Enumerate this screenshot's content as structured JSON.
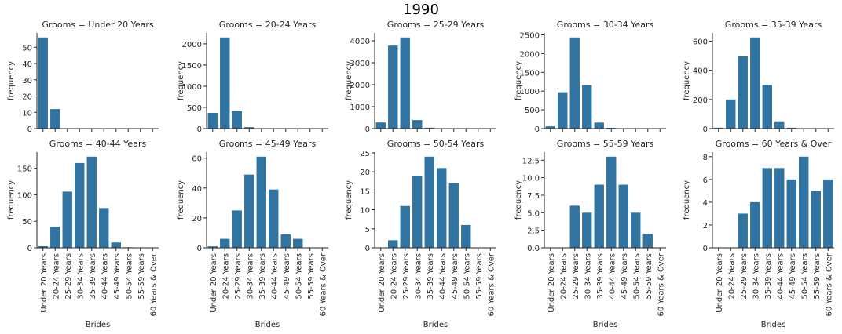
{
  "figure": {
    "title": "1990",
    "bar_color": "#3274a1",
    "axis_color": "#262626"
  },
  "chart_data": [
    {
      "type": "bar",
      "title": "Grooms = Under 20 Years",
      "xlabel": "",
      "ylabel": "frequency",
      "categories": [
        "Under 20 Years",
        "20-24 Years",
        "25-29 Years",
        "30-34 Years",
        "35-39 Years",
        "40-44 Years",
        "45-49 Years",
        "50-54 Years",
        "55-59 Years",
        "60 Years & Over"
      ],
      "values": [
        56,
        12,
        0,
        0,
        0,
        0,
        0,
        0,
        0,
        0
      ],
      "ylim": [
        0,
        58.8
      ],
      "yticks": [
        0,
        10,
        20,
        30,
        40,
        50
      ],
      "yticklabels": [
        "0",
        "10",
        "20",
        "30",
        "40",
        "50"
      ],
      "show_xticklabels": false
    },
    {
      "type": "bar",
      "title": "Grooms = 20-24 Years",
      "xlabel": "",
      "ylabel": "frequency",
      "categories": [
        "Under 20 Years",
        "20-24 Years",
        "25-29 Years",
        "30-34 Years",
        "35-39 Years",
        "40-44 Years",
        "45-49 Years",
        "50-54 Years",
        "55-59 Years",
        "60 Years & Over"
      ],
      "values": [
        370,
        2150,
        410,
        35,
        5,
        1,
        0,
        0,
        0,
        0
      ],
      "ylim": [
        0,
        2257.5
      ],
      "yticks": [
        0,
        500,
        1000,
        1500,
        2000
      ],
      "yticklabels": [
        "0",
        "500",
        "1000",
        "1500",
        "2000"
      ],
      "show_xticklabels": false
    },
    {
      "type": "bar",
      "title": "Grooms = 25-29 Years",
      "xlabel": "",
      "ylabel": "frequency",
      "categories": [
        "Under 20 Years",
        "20-24 Years",
        "25-29 Years",
        "30-34 Years",
        "35-39 Years",
        "40-44 Years",
        "45-49 Years",
        "50-54 Years",
        "55-59 Years",
        "60 Years & Over"
      ],
      "values": [
        280,
        3780,
        4150,
        390,
        40,
        5,
        1,
        0,
        0,
        0
      ],
      "ylim": [
        0,
        4357.5
      ],
      "yticks": [
        0,
        1000,
        2000,
        3000,
        4000
      ],
      "yticklabels": [
        "0",
        "1000",
        "2000",
        "3000",
        "4000"
      ],
      "show_xticklabels": false
    },
    {
      "type": "bar",
      "title": "Grooms = 30-34 Years",
      "xlabel": "",
      "ylabel": "frequency",
      "categories": [
        "Under 20 Years",
        "20-24 Years",
        "25-29 Years",
        "30-34 Years",
        "35-39 Years",
        "40-44 Years",
        "45-49 Years",
        "50-54 Years",
        "55-59 Years",
        "60 Years & Over"
      ],
      "values": [
        60,
        970,
        2430,
        1160,
        160,
        20,
        3,
        0,
        0,
        0
      ],
      "ylim": [
        0,
        2551.5
      ],
      "yticks": [
        0,
        500,
        1000,
        1500,
        2000,
        2500
      ],
      "yticklabels": [
        "0",
        "500",
        "1000",
        "1500",
        "2000",
        "2500"
      ],
      "show_xticklabels": false
    },
    {
      "type": "bar",
      "title": "Grooms = 35-39 Years",
      "xlabel": "",
      "ylabel": "frequency",
      "categories": [
        "Under 20 Years",
        "20-24 Years",
        "25-29 Years",
        "30-34 Years",
        "35-39 Years",
        "40-44 Years",
        "45-49 Years",
        "50-54 Years",
        "55-59 Years",
        "60 Years & Over"
      ],
      "values": [
        6,
        200,
        495,
        625,
        300,
        50,
        6,
        1,
        0,
        0
      ],
      "ylim": [
        0,
        656.25
      ],
      "yticks": [
        0,
        200,
        400,
        600
      ],
      "yticklabels": [
        "0",
        "200",
        "400",
        "600"
      ],
      "show_xticklabels": false
    },
    {
      "type": "bar",
      "title": "Grooms = 40-44 Years",
      "xlabel": "Brides",
      "ylabel": "frequency",
      "categories": [
        "Under 20 Years",
        "20-24 Years",
        "25-29 Years",
        "30-34 Years",
        "35-39 Years",
        "40-44 Years",
        "45-49 Years",
        "50-54 Years",
        "55-59 Years",
        "60 Years & Over"
      ],
      "values": [
        3,
        40,
        106,
        160,
        172,
        75,
        10,
        1,
        0,
        0
      ],
      "ylim": [
        0,
        180.6
      ],
      "yticks": [
        0,
        50,
        100,
        150
      ],
      "yticklabels": [
        "0",
        "50",
        "100",
        "150"
      ],
      "show_xticklabels": true
    },
    {
      "type": "bar",
      "title": "Grooms = 45-49 Years",
      "xlabel": "Brides",
      "ylabel": "frequency",
      "categories": [
        "Under 20 Years",
        "20-24 Years",
        "25-29 Years",
        "30-34 Years",
        "35-39 Years",
        "40-44 Years",
        "45-49 Years",
        "50-54 Years",
        "55-59 Years",
        "60 Years & Over"
      ],
      "values": [
        1,
        6,
        25,
        49,
        61,
        39,
        9,
        6,
        0,
        0
      ],
      "ylim": [
        0,
        64.05
      ],
      "yticks": [
        0,
        20,
        40,
        60
      ],
      "yticklabels": [
        "0",
        "20",
        "40",
        "60"
      ],
      "show_xticklabels": true
    },
    {
      "type": "bar",
      "title": "Grooms = 50-54 Years",
      "xlabel": "Brides",
      "ylabel": "frequency",
      "categories": [
        "Under 20 Years",
        "20-24 Years",
        "25-29 Years",
        "30-34 Years",
        "35-39 Years",
        "40-44 Years",
        "45-49 Years",
        "50-54 Years",
        "55-59 Years",
        "60 Years & Over"
      ],
      "values": [
        0,
        2,
        11,
        19,
        24,
        21,
        17,
        6,
        0,
        0
      ],
      "ylim": [
        0,
        25.2
      ],
      "yticks": [
        0,
        5,
        10,
        15,
        20,
        25
      ],
      "yticklabels": [
        "0",
        "5",
        "10",
        "15",
        "20",
        "25"
      ],
      "show_xticklabels": true
    },
    {
      "type": "bar",
      "title": "Grooms = 55-59 Years",
      "xlabel": "Brides",
      "ylabel": "frequency",
      "categories": [
        "Under 20 Years",
        "20-24 Years",
        "25-29 Years",
        "30-34 Years",
        "35-39 Years",
        "40-44 Years",
        "45-49 Years",
        "50-54 Years",
        "55-59 Years",
        "60 Years & Over"
      ],
      "values": [
        0,
        0,
        6,
        5,
        9,
        13,
        9,
        5,
        2,
        0
      ],
      "ylim": [
        0,
        13.65
      ],
      "yticks": [
        0,
        2.5,
        5,
        7.5,
        10,
        12.5
      ],
      "yticklabels": [
        "0.0",
        "2.5",
        "5.0",
        "7.5",
        "10.0",
        "12.5"
      ],
      "show_xticklabels": true
    },
    {
      "type": "bar",
      "title": "Grooms = 60 Years & Over",
      "xlabel": "Brides",
      "ylabel": "frequency",
      "categories": [
        "Under 20 Years",
        "20-24 Years",
        "25-29 Years",
        "30-34 Years",
        "35-39 Years",
        "40-44 Years",
        "45-49 Years",
        "50-54 Years",
        "55-59 Years",
        "60 Years & Over"
      ],
      "values": [
        0,
        0,
        3,
        4,
        7,
        7,
        6,
        8,
        5,
        6
      ],
      "ylim": [
        0,
        8.4
      ],
      "yticks": [
        0,
        2,
        4,
        6,
        8
      ],
      "yticklabels": [
        "0",
        "2",
        "4",
        "6",
        "8"
      ],
      "show_xticklabels": true
    }
  ]
}
